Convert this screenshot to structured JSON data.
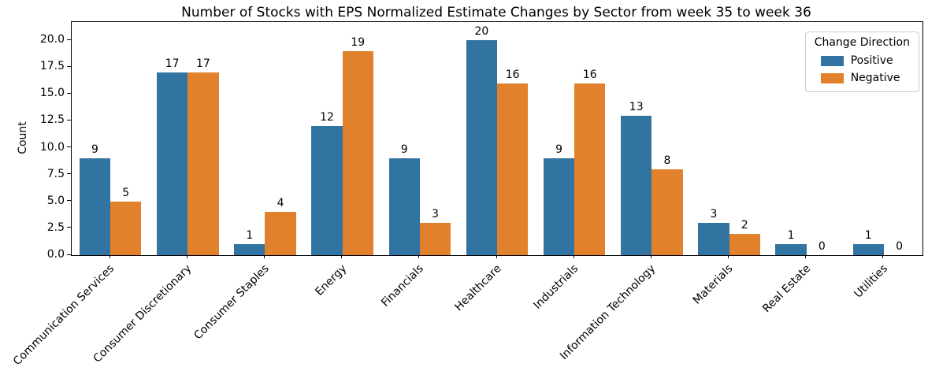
{
  "chart_data": {
    "type": "bar",
    "title": "Number of Stocks with EPS Normalized Estimate Changes by Sector from week 35 to week 36",
    "xlabel": "",
    "ylabel": "Count",
    "legend_title": "Change Direction",
    "legend_position": "upper right",
    "grid": false,
    "categories": [
      "Communication Services",
      "Consumer Discretionary",
      "Consumer Staples",
      "Energy",
      "Financials",
      "Healthcare",
      "Industrials",
      "Information Technology",
      "Materials",
      "Real Estate",
      "Utilities"
    ],
    "series": [
      {
        "name": "Positive",
        "color": "#3274a1",
        "values": [
          9,
          17,
          1,
          12,
          9,
          20,
          9,
          13,
          3,
          1,
          1
        ]
      },
      {
        "name": "Negative",
        "color": "#e1812c",
        "values": [
          5,
          17,
          4,
          19,
          3,
          16,
          16,
          8,
          2,
          0,
          0
        ]
      }
    ],
    "yticks": [
      0.0,
      2.5,
      5.0,
      7.5,
      10.0,
      12.5,
      15.0,
      17.5,
      20.0
    ],
    "ylim": [
      0,
      21.7
    ],
    "bar_labels_shown": true
  }
}
